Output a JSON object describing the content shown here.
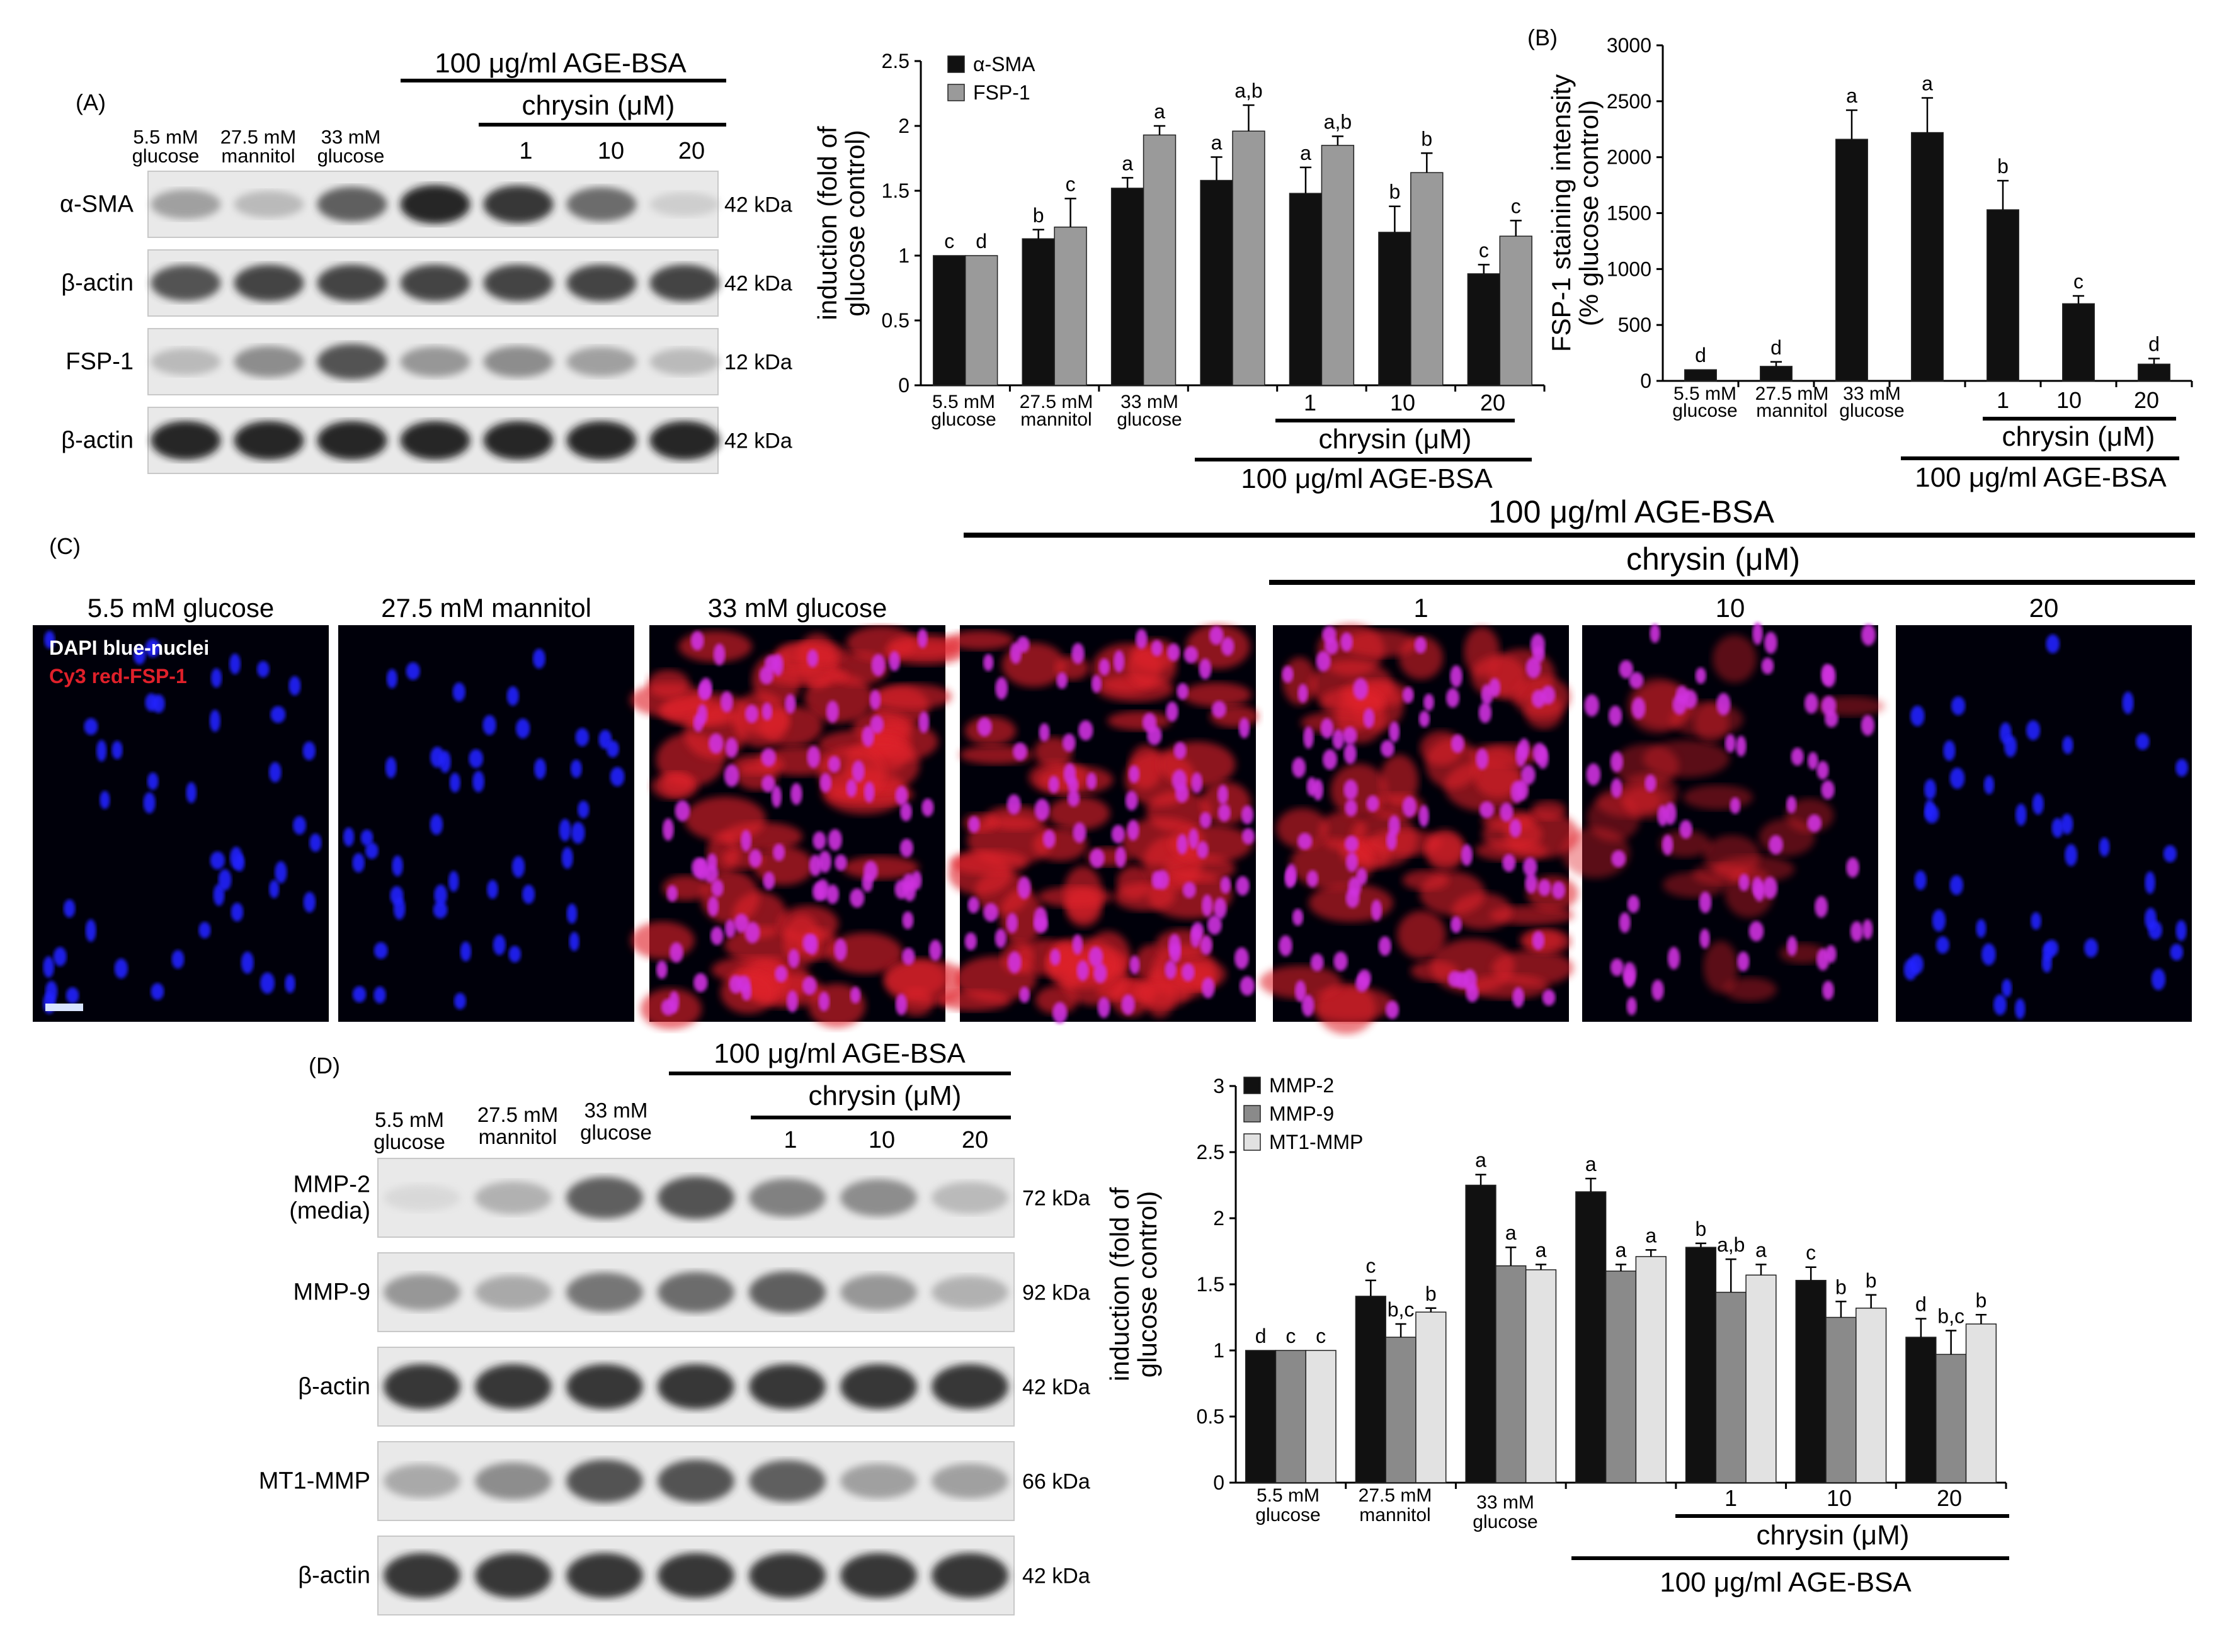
{
  "panels": {
    "A": {
      "label": "(A)"
    },
    "B": {
      "label": "(B)"
    },
    "C": {
      "label": "(C)"
    },
    "D": {
      "label": "(D)"
    }
  },
  "treatment": {
    "glucose_low": [
      "5.5 mM",
      "glucose"
    ],
    "mannitol": [
      "27.5 mM",
      "mannitol"
    ],
    "glucose_high": [
      "33 mM",
      "glucose"
    ],
    "age_bsa": "100 μg/ml  AGE-BSA",
    "chrysin": "chrysin (μM)",
    "doses": [
      "1",
      "10",
      "20"
    ]
  },
  "blot_A": {
    "rows": [
      {
        "name": "α-SMA",
        "kda": "42 kDa",
        "intensity": [
          0.45,
          0.3,
          0.75,
          0.95,
          0.9,
          0.7,
          0.15
        ]
      },
      {
        "name": "β-actin",
        "kda": "42 kDa",
        "intensity": [
          0.8,
          0.85,
          0.85,
          0.85,
          0.85,
          0.85,
          0.85
        ]
      },
      {
        "name": "FSP-1",
        "kda": "12 kDa",
        "intensity": [
          0.3,
          0.55,
          0.8,
          0.5,
          0.55,
          0.45,
          0.3
        ]
      },
      {
        "name": "β-actin",
        "kda": "42 kDa",
        "intensity": [
          0.95,
          0.95,
          0.95,
          0.95,
          0.95,
          0.95,
          0.95
        ]
      }
    ]
  },
  "blot_D": {
    "rows": [
      {
        "name": [
          "MMP-2",
          "(media)"
        ],
        "kda": "72 kDa",
        "intensity": [
          0.05,
          0.35,
          0.75,
          0.8,
          0.6,
          0.55,
          0.3
        ]
      },
      {
        "name": [
          "MMP-9"
        ],
        "kda": "92 kDa",
        "intensity": [
          0.5,
          0.4,
          0.65,
          0.7,
          0.75,
          0.5,
          0.35
        ]
      },
      {
        "name": [
          "β-actin"
        ],
        "kda": "42 kDa",
        "intensity": [
          0.9,
          0.9,
          0.9,
          0.9,
          0.9,
          0.9,
          0.9
        ]
      },
      {
        "name": [
          "MT1-MMP"
        ],
        "kda": "66 kDa",
        "intensity": [
          0.4,
          0.55,
          0.8,
          0.8,
          0.75,
          0.45,
          0.45
        ]
      },
      {
        "name": [
          "β-actin"
        ],
        "kda": "42 kDa",
        "intensity": [
          0.9,
          0.9,
          0.9,
          0.9,
          0.9,
          0.9,
          0.9
        ]
      }
    ]
  },
  "images_C": {
    "headers": [
      "5.5 mM glucose",
      "27.5 mM mannitol",
      "33 mM glucose",
      "",
      "1",
      "10",
      "20"
    ],
    "legend_blue": "DAPI blue-nuclei",
    "legend_red": "Cy3 red-FSP-1",
    "red_level": [
      0.0,
      0.02,
      0.85,
      0.85,
      0.75,
      0.35,
      0.0
    ],
    "colors": {
      "background": "#00000a",
      "nuclei": "#2222ff",
      "fsp1": "#e0202a",
      "merged": "#d030e0"
    }
  },
  "chart_data": [
    {
      "type": "bar",
      "panel": "A",
      "categories": [
        "5.5 mM glucose",
        "27.5 mM mannitol",
        "33 mM glucose",
        "100 μg/ml AGE-BSA",
        "1",
        "10",
        "20"
      ],
      "ylabel": [
        "induction (fold of",
        "glucose control)"
      ],
      "ylim": [
        0,
        2.5
      ],
      "yticks": [
        "0",
        "0.5",
        "1",
        "1.5",
        "2",
        "2.5"
      ],
      "legend_position": "top-left",
      "series": [
        {
          "name": "α-SMA",
          "color": "#111111",
          "values": [
            1.0,
            1.13,
            1.52,
            1.58,
            1.48,
            1.18,
            0.86
          ],
          "errors": [
            0.0,
            0.07,
            0.08,
            0.18,
            0.2,
            0.2,
            0.07
          ],
          "letters": [
            "c",
            "b",
            "a",
            "a",
            "a",
            "b",
            "c"
          ]
        },
        {
          "name": "FSP-1",
          "color": "#9a9a9a",
          "values": [
            1.0,
            1.22,
            1.93,
            1.96,
            1.85,
            1.64,
            1.15
          ],
          "errors": [
            0.0,
            0.22,
            0.07,
            0.2,
            0.07,
            0.15,
            0.12
          ],
          "letters": [
            "d",
            "c",
            "a",
            "a,b",
            "a,b",
            "b",
            "c"
          ]
        }
      ]
    },
    {
      "type": "bar",
      "panel": "B",
      "categories": [
        "5.5 mM glucose",
        "27.5 mM mannitol",
        "33 mM glucose",
        "100 μg/ml AGE-BSA",
        "1",
        "10",
        "20"
      ],
      "ylabel": [
        "FSP-1 staining intensity",
        "(% glucose control)"
      ],
      "ylim": [
        0,
        3000
      ],
      "yticks": [
        "0",
        "500",
        "1000",
        "1500",
        "2000",
        "2500",
        "3000"
      ],
      "series": [
        {
          "name": "",
          "color": "#111111",
          "values": [
            100,
            130,
            2160,
            2220,
            1530,
            690,
            150
          ],
          "errors": [
            0,
            40,
            260,
            310,
            260,
            70,
            50
          ],
          "letters": [
            "d",
            "d",
            "a",
            "a",
            "b",
            "c",
            "d"
          ]
        }
      ]
    },
    {
      "type": "bar",
      "panel": "D",
      "categories": [
        "5.5 mM glucose",
        "27.5 mM mannitol",
        "33 mM glucose",
        "100 μg/ml AGE-BSA",
        "1",
        "10",
        "20"
      ],
      "ylabel": [
        "induction (fold of",
        "glucose control)"
      ],
      "ylim": [
        0,
        3
      ],
      "yticks": [
        "0",
        "0.5",
        "1",
        "1.5",
        "2",
        "2.5",
        "3"
      ],
      "legend_position": "top-left",
      "series": [
        {
          "name": "MMP-2",
          "color": "#111111",
          "values": [
            1.0,
            1.41,
            2.25,
            2.2,
            1.78,
            1.53,
            1.1
          ],
          "errors": [
            0.0,
            0.12,
            0.08,
            0.1,
            0.03,
            0.1,
            0.14
          ],
          "letters": [
            "d",
            "c",
            "a",
            "a",
            "b",
            "c",
            "d"
          ]
        },
        {
          "name": "MMP-9",
          "color": "#8a8a8a",
          "values": [
            1.0,
            1.1,
            1.64,
            1.6,
            1.44,
            1.25,
            0.97
          ],
          "errors": [
            0.0,
            0.1,
            0.14,
            0.05,
            0.25,
            0.12,
            0.18
          ],
          "letters": [
            "c",
            "b,c",
            "a",
            "a",
            "a,b",
            "b",
            "b,c"
          ]
        },
        {
          "name": "MT1-MMP",
          "color": "#e2e2e2",
          "values": [
            1.0,
            1.29,
            1.61,
            1.71,
            1.57,
            1.32,
            1.2
          ],
          "errors": [
            0.0,
            0.03,
            0.04,
            0.05,
            0.08,
            0.1,
            0.07
          ],
          "letters": [
            "c",
            "b",
            "a",
            "a",
            "a",
            "b",
            "b"
          ]
        }
      ]
    }
  ]
}
